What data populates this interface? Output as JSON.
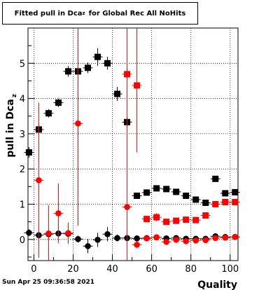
{
  "chart_data": {
    "type": "scatter",
    "title": "Fitted pull in Dca",
    "title_sub": "z",
    "title_suffix": "for Global Rec All NoHits",
    "xlabel": "Quality",
    "ylabel": "pull in Dca",
    "ylabel_sub": "z",
    "xlim": [
      -3,
      104
    ],
    "ylim": [
      -0.6,
      6.0
    ],
    "x_ticks": [
      "0",
      "20",
      "40",
      "60",
      "80",
      "100"
    ],
    "y_ticks": [
      "0",
      "1",
      "2",
      "3",
      "4",
      "5"
    ],
    "grid": true,
    "series": [
      {
        "color": "#000000",
        "marker": "square",
        "points": [
          {
            "x": -2.5,
            "y": 2.47,
            "err": 0.15
          },
          {
            "x": 2.5,
            "y": 3.12,
            "err": 0.15
          },
          {
            "x": 7.5,
            "y": 3.58,
            "err": 0.12
          },
          {
            "x": 12.5,
            "y": 3.88,
            "err": 0.12
          },
          {
            "x": 17.5,
            "y": 4.77,
            "err": 0.15
          },
          {
            "x": 22.5,
            "y": 4.77,
            "err": 0.15
          },
          {
            "x": 27.5,
            "y": 4.87,
            "err": 0.15
          },
          {
            "x": 32.5,
            "y": 5.18,
            "err": 0.25
          },
          {
            "x": 37.5,
            "y": 5.0,
            "err": 0.18
          },
          {
            "x": 42.5,
            "y": 4.13,
            "err": 0.2
          },
          {
            "x": 47.5,
            "y": 3.33,
            "err": 0.15
          },
          {
            "x": 52.5,
            "y": 1.24,
            "err": 0.08
          },
          {
            "x": 57.5,
            "y": 1.33,
            "err": 0.08
          },
          {
            "x": 62.5,
            "y": 1.45,
            "err": 0.08
          },
          {
            "x": 67.5,
            "y": 1.43,
            "err": 0.08
          },
          {
            "x": 72.5,
            "y": 1.35,
            "err": 0.08
          },
          {
            "x": 77.5,
            "y": 1.24,
            "err": 0.08
          },
          {
            "x": 82.5,
            "y": 1.13,
            "err": 0.08
          },
          {
            "x": 87.5,
            "y": 1.04,
            "err": 0.08
          },
          {
            "x": 92.5,
            "y": 1.72,
            "err": 0.08
          },
          {
            "x": 97.5,
            "y": 1.31,
            "err": 0.08
          },
          {
            "x": 102.5,
            "y": 1.34,
            "err": 0.08
          }
        ]
      },
      {
        "color": "#ff0000",
        "marker": "square",
        "points": [
          {
            "x": 47.5,
            "y": 4.69,
            "err": 0.15
          },
          {
            "x": 52.5,
            "y": 4.37,
            "err": 1.9
          },
          {
            "x": 57.5,
            "y": 0.58,
            "err": 0.08
          },
          {
            "x": 62.5,
            "y": 0.63,
            "err": 0.12
          },
          {
            "x": 67.5,
            "y": 0.5,
            "err": 0.08
          },
          {
            "x": 72.5,
            "y": 0.53,
            "err": 0.08
          },
          {
            "x": 77.5,
            "y": 0.56,
            "err": 0.08
          },
          {
            "x": 82.5,
            "y": 0.55,
            "err": 0.08
          },
          {
            "x": 87.5,
            "y": 0.68,
            "err": 0.08
          },
          {
            "x": 92.5,
            "y": 1.0,
            "err": 0.08
          },
          {
            "x": 97.5,
            "y": 1.06,
            "err": 0.08
          },
          {
            "x": 102.5,
            "y": 1.06,
            "err": 0.08
          }
        ]
      },
      {
        "color": "#000000",
        "marker": "circle",
        "points": [
          {
            "x": -2.5,
            "y": 0.19,
            "err": 0.1
          },
          {
            "x": 2.5,
            "y": 0.12,
            "err": 0.1
          },
          {
            "x": 7.5,
            "y": 0.15,
            "err": 0.1
          },
          {
            "x": 12.5,
            "y": 0.17,
            "err": 0.1
          },
          {
            "x": 17.5,
            "y": 0.16,
            "err": 0.1
          },
          {
            "x": 22.5,
            "y": 0.01,
            "err": 0.1
          },
          {
            "x": 27.5,
            "y": -0.19,
            "err": 0.2
          },
          {
            "x": 32.5,
            "y": -0.01,
            "err": 0.2
          },
          {
            "x": 37.5,
            "y": 0.15,
            "err": 0.2
          },
          {
            "x": 42.5,
            "y": 0.04,
            "err": 0.1
          },
          {
            "x": 47.5,
            "y": 0.04,
            "err": 0.1
          },
          {
            "x": 52.5,
            "y": 0.03,
            "err": 0.08
          },
          {
            "x": 57.5,
            "y": 0.04,
            "err": 0.05
          },
          {
            "x": 62.5,
            "y": 0.06,
            "err": 0.05
          },
          {
            "x": 67.5,
            "y": 0.03,
            "err": 0.05
          },
          {
            "x": 72.5,
            "y": 0.04,
            "err": 0.05
          },
          {
            "x": 77.5,
            "y": 0.02,
            "err": 0.05
          },
          {
            "x": 82.5,
            "y": 0.02,
            "err": 0.05
          },
          {
            "x": 87.5,
            "y": 0.02,
            "err": 0.05
          },
          {
            "x": 92.5,
            "y": 0.09,
            "err": 0.05
          },
          {
            "x": 97.5,
            "y": 0.07,
            "err": 0.05
          },
          {
            "x": 102.5,
            "y": 0.07,
            "err": 0.05
          }
        ]
      },
      {
        "color": "#ff0000",
        "marker": "circle",
        "points": [
          {
            "x": 2.5,
            "y": 1.68,
            "err": 2.2
          },
          {
            "x": 7.5,
            "y": 0.17,
            "err": 0.8
          },
          {
            "x": 12.5,
            "y": 0.74,
            "err": 0.85
          },
          {
            "x": 17.5,
            "y": 0.18,
            "err": 0.3
          },
          {
            "x": 22.5,
            "y": 3.29,
            "err": 2.9
          },
          {
            "x": 47.5,
            "y": 0.92,
            "err": 6.0
          },
          {
            "x": 52.5,
            "y": -0.15,
            "err": 0.1
          },
          {
            "x": 57.5,
            "y": 0.03,
            "err": 0.05
          },
          {
            "x": 62.5,
            "y": 0.06,
            "err": 0.05
          },
          {
            "x": 67.5,
            "y": -0.07,
            "err": 0.05
          },
          {
            "x": 72.5,
            "y": -0.01,
            "err": 0.05
          },
          {
            "x": 77.5,
            "y": -0.05,
            "err": 0.05
          },
          {
            "x": 82.5,
            "y": -0.03,
            "err": 0.05
          },
          {
            "x": 87.5,
            "y": -0.02,
            "err": 0.05
          },
          {
            "x": 92.5,
            "y": 0.04,
            "err": 0.05
          },
          {
            "x": 97.5,
            "y": 0.05,
            "err": 0.05
          },
          {
            "x": 102.5,
            "y": 0.07,
            "err": 0.05
          }
        ]
      }
    ]
  },
  "footer": {
    "timestamp": "Sun Apr 25 09:36:58 2021"
  }
}
